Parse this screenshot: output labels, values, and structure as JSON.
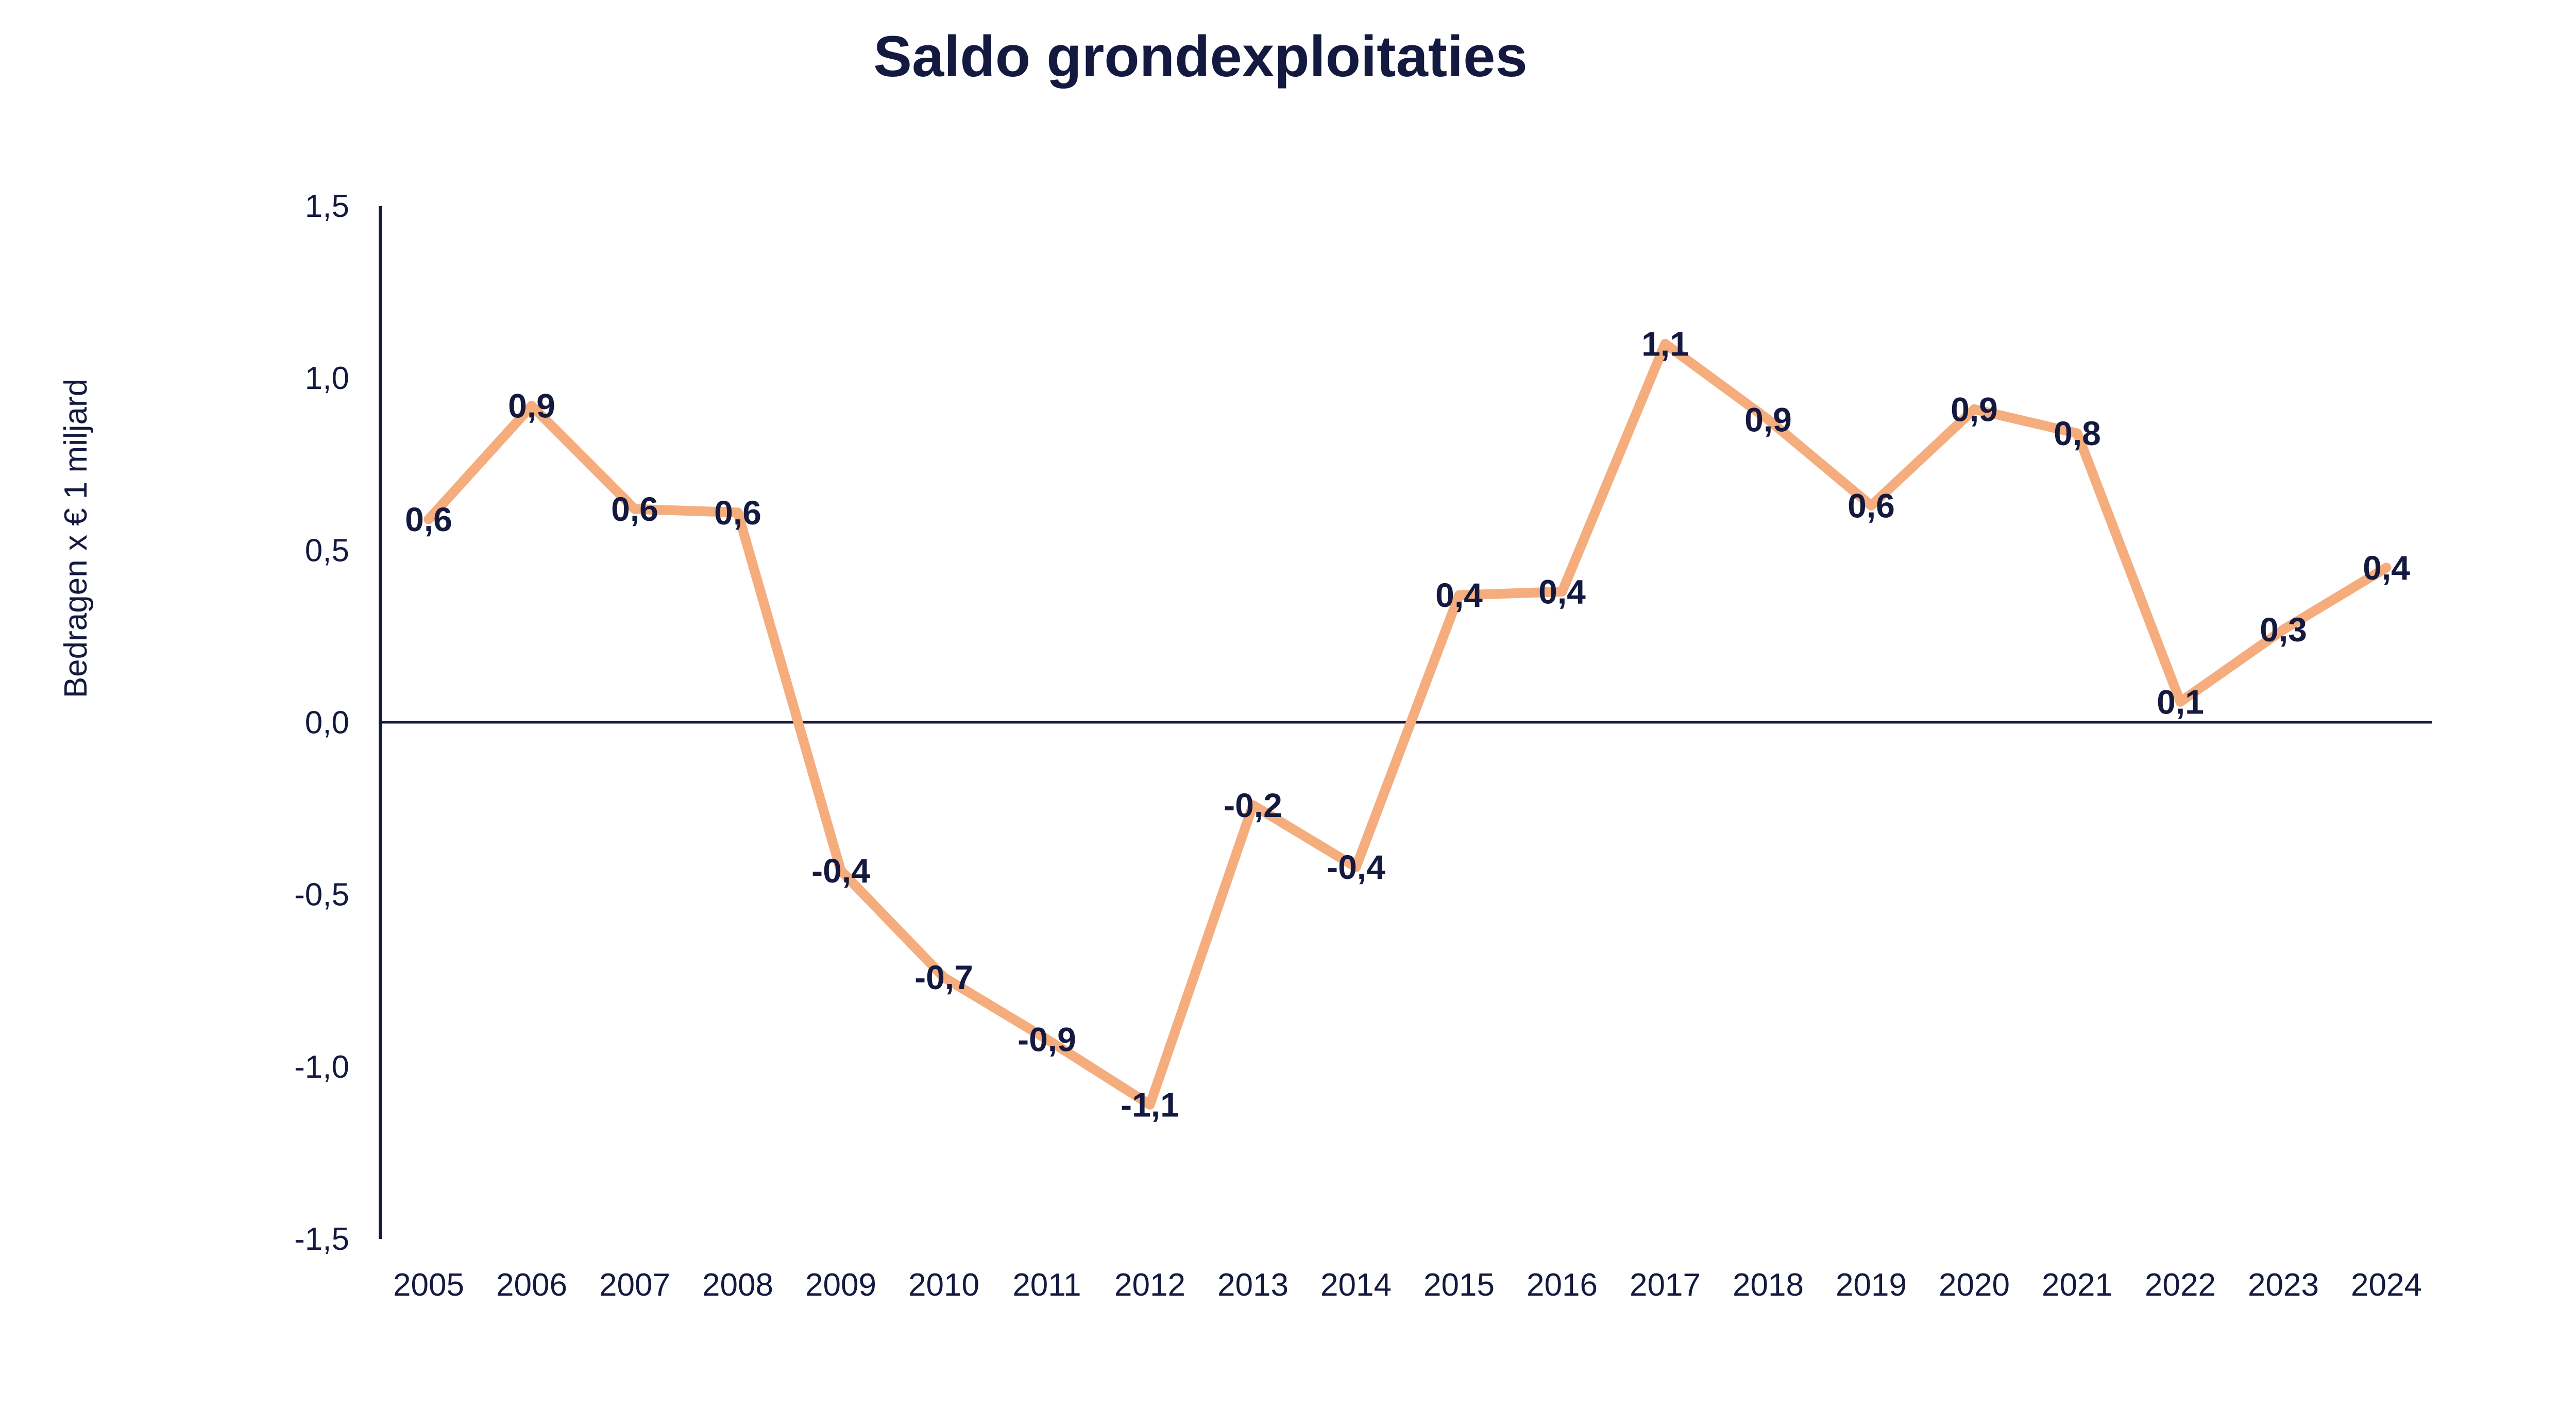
{
  "chart_data": {
    "type": "line",
    "title": "Saldo grondexploitaties",
    "xlabel": "",
    "ylabel": "Bedragen x € 1 miljard",
    "ylim": [
      -1.5,
      1.5
    ],
    "y_ticks": [
      1.5,
      1.0,
      0.5,
      0.0,
      -0.5,
      -1.0,
      -1.5
    ],
    "y_tick_labels": [
      "1,5",
      "1,0",
      "0,5",
      "0,0",
      "-0,5",
      "-1,0",
      "-1,5"
    ],
    "categories": [
      "2005",
      "2006",
      "2007",
      "2008",
      "2009",
      "2010",
      "2011",
      "2012",
      "2013",
      "2014",
      "2015",
      "2016",
      "2017",
      "2018",
      "2019",
      "2020",
      "2021",
      "2022",
      "2023",
      "2024"
    ],
    "series": [
      {
        "name": "Saldo grondexploitaties",
        "color": "#f5ad7e",
        "values": [
          0.59,
          0.92,
          0.62,
          0.61,
          -0.43,
          -0.74,
          -0.92,
          -1.11,
          -0.24,
          -0.42,
          0.37,
          0.38,
          1.1,
          0.88,
          0.63,
          0.91,
          0.84,
          0.06,
          0.27,
          0.45
        ],
        "data_labels": [
          "0,6",
          "0,9",
          "0,6",
          "0,6",
          "-0,4",
          "-0,7",
          "-0,9",
          "-1,1",
          "-0,2",
          "-0,4",
          "0,4",
          "0,4",
          "1,1",
          "0,9",
          "0,6",
          "0,9",
          "0,8",
          "0,1",
          "0,3",
          "0,4"
        ]
      }
    ],
    "grid": false,
    "legend": "none"
  },
  "colors": {
    "text": "#14193f",
    "axis": "#14193f",
    "line": "#f5ad7e"
  }
}
